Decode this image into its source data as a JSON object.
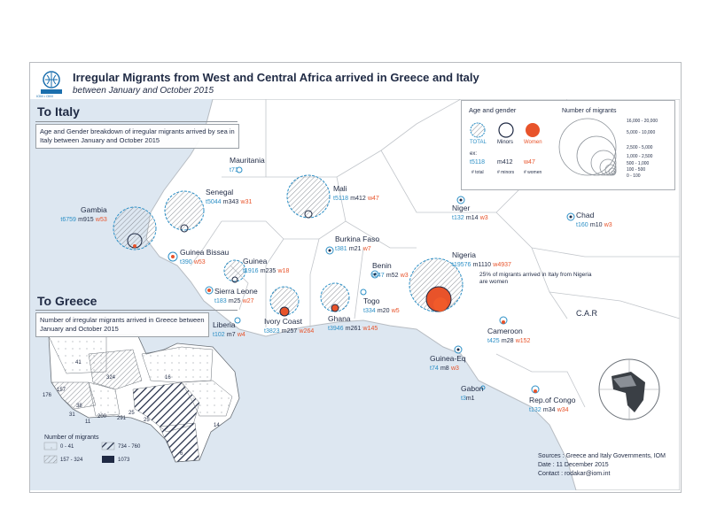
{
  "header": {
    "title": "Irregular Migrants from West and Central Africa arrived in Greece and Italy",
    "subtitle": "between January and October 2015",
    "logo_text": "IOM • OIM"
  },
  "colors": {
    "total": "#2b8fc6",
    "minors": "#1f2a44",
    "women": "#e8532a",
    "land": "#ffffff",
    "sea": "#dde7f1",
    "hatch": "#8a8f96"
  },
  "italy_panel": {
    "heading": "To Italy",
    "description": "Age and Gender breakdown of irregular migrants arrived by sea in Italy between January and October 2015"
  },
  "greece_panel": {
    "heading": "To Greece",
    "description": "Number of irregular migrants arrived in Greece between January and October 2015",
    "legend_title": "Number of migrants",
    "classes": [
      "0 - 41",
      "157 - 324",
      "734 - 760",
      "1073"
    ],
    "region_values": [
      "41",
      "324",
      "16",
      "157",
      "176",
      "38",
      "31",
      "11",
      "200",
      "25",
      "291",
      "25",
      "14",
      "6"
    ]
  },
  "legend": {
    "age_gender_title": "Age and gender",
    "total_label": "TOTAL",
    "minors_label": "Minors",
    "women_label": "Women",
    "example_label": "ex:",
    "example_total": "t5118",
    "example_minors": "m412",
    "example_women": "w47",
    "example_total_caption": "# total",
    "example_minors_caption": "# minors",
    "example_women_caption": "# women",
    "size_title": "Number of migrants",
    "size_classes": [
      "16,000 - 20,000",
      "5,000 - 10,000",
      "2,500 - 5,000",
      "1,000 - 2,500",
      "500 - 1,000",
      "100 - 500",
      "0 - 100"
    ]
  },
  "countries": [
    {
      "name": "Mauritania",
      "total": "t71",
      "minors": "",
      "women": ""
    },
    {
      "name": "Senegal",
      "total": "t5044",
      "minors": "m343",
      "women": "w31"
    },
    {
      "name": "Mali",
      "total": "t5118",
      "minors": "m412",
      "women": "w47"
    },
    {
      "name": "Gambia",
      "total": "t6759",
      "minors": "m915",
      "women": "w53"
    },
    {
      "name": "Niger",
      "total": "t132",
      "minors": "m14",
      "women": "w3"
    },
    {
      "name": "Chad",
      "total": "t160",
      "minors": "m10",
      "women": "w3"
    },
    {
      "name": "Burkina Faso",
      "total": "t381",
      "minors": "m21",
      "women": "w7"
    },
    {
      "name": "Guinea Bissau",
      "total": "t390",
      "minors": "",
      "women": "w53"
    },
    {
      "name": "Guinea",
      "total": "t1916",
      "minors": "m235",
      "women": "w18"
    },
    {
      "name": "Benin",
      "total": "t347",
      "minors": "m52",
      "women": "w3"
    },
    {
      "name": "Nigeria",
      "total": "t19576",
      "minors": "m1110",
      "women": "w4937"
    },
    {
      "name": "Sierra Leone",
      "total": "t183",
      "minors": "m25",
      "women": "w27"
    },
    {
      "name": "Togo",
      "total": "t334",
      "minors": "m20",
      "women": "w5"
    },
    {
      "name": "Liberia",
      "total": "t102",
      "minors": "m7",
      "women": "w4"
    },
    {
      "name": "Ivory Coast",
      "total": "t3823",
      "minors": "m257",
      "women": "w264"
    },
    {
      "name": "Ghana",
      "total": "t3946",
      "minors": "m261",
      "women": "w145"
    },
    {
      "name": "Cameroon",
      "total": "t425",
      "minors": "m28",
      "women": "w152"
    },
    {
      "name": "Guinea-Eq",
      "total": "t74",
      "minors": "m8",
      "women": "w3"
    },
    {
      "name": "Gabon",
      "total": "t3",
      "minors": "m1",
      "women": ""
    },
    {
      "name": "Rep.of Congo",
      "total": "t132",
      "minors": "m34",
      "women": "w34"
    }
  ],
  "annotations": {
    "nigeria_note": "25% of migrants arrived in Italy from Nigeria are women",
    "car_label": "C.A.R"
  },
  "sources": {
    "line1": "Sources : Greece and Italy Governments, IOM",
    "line2": "Date : 11 December 2015",
    "line3": "Contact : rodakar@iom.int"
  }
}
